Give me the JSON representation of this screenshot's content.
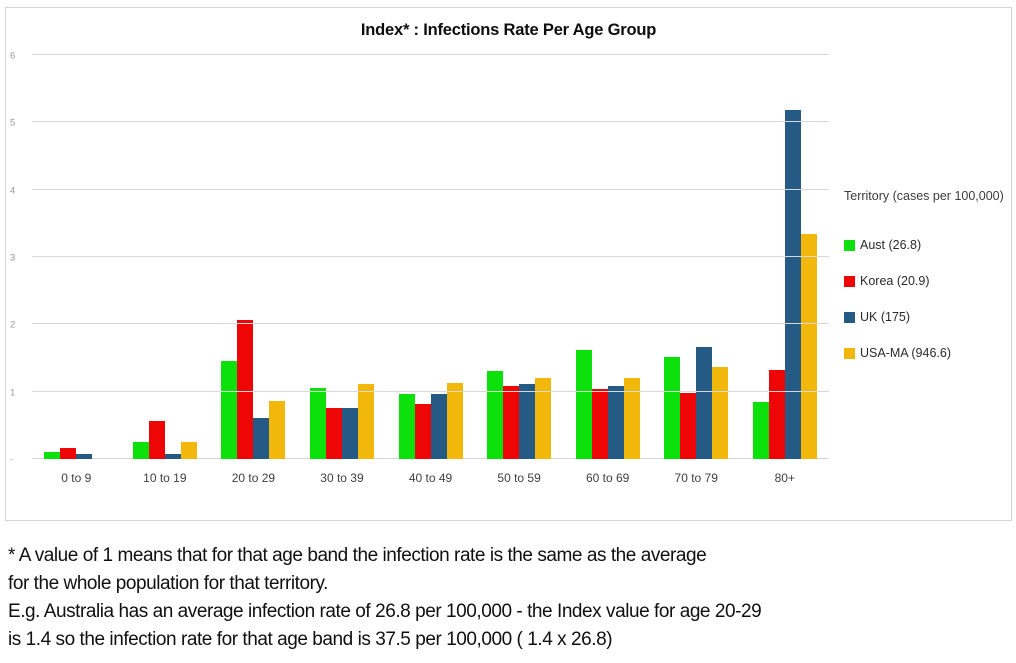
{
  "chart": {
    "title": "Index* : Infections Rate Per Age Group"
  },
  "legend": {
    "title": "Territory (cases per 100,000)",
    "items": [
      {
        "label": "Aust (26.8)",
        "color": "#0ce10c"
      },
      {
        "label": "Korea (20.9)",
        "color": "#ee0606"
      },
      {
        "label": "UK (175)",
        "color": "#255a85"
      },
      {
        "label": "USA-MA (946.6)",
        "color": "#f2b70b"
      }
    ]
  },
  "footnote": {
    "lines": [
      "* A value of 1 means that for that age band the infection rate is the same as the average",
      "for the whole population for that territory.",
      "E.g. Australia has an average infection rate of 26.8 per 100,000 - the Index value for age 20-29",
      "is 1.4 so the infection rate for that age band is 37.5 per 100,000 ( 1.4 x 26.8)"
    ]
  },
  "chart_data": {
    "type": "bar",
    "title": "Index* : Infections Rate Per Age Group",
    "categories": [
      "0 to 9",
      "10 to 19",
      "20 to 29",
      "30 to 39",
      "40 to 49",
      "50 to 59",
      "60 to 69",
      "70 to 79",
      "80+"
    ],
    "series": [
      {
        "name": "Aust (26.8)",
        "color": "#0ce10c",
        "values": [
          0.1,
          0.25,
          1.45,
          1.06,
          0.97,
          1.31,
          1.62,
          1.51,
          0.84
        ]
      },
      {
        "name": "Korea (20.9)",
        "color": "#ee0606",
        "values": [
          0.16,
          0.57,
          2.06,
          0.76,
          0.81,
          1.09,
          1.04,
          0.98,
          1.32
        ]
      },
      {
        "name": "UK (175)",
        "color": "#255a85",
        "values": [
          0.07,
          0.08,
          0.61,
          0.75,
          0.96,
          1.12,
          1.08,
          1.67,
          5.19
        ]
      },
      {
        "name": "USA-MA (946.6)",
        "color": "#f2b70b",
        "values": [
          0.0,
          0.25,
          0.86,
          1.11,
          1.13,
          1.21,
          1.2,
          1.36,
          3.34
        ]
      }
    ],
    "xlabel": "",
    "ylabel": "",
    "ylim": [
      0,
      6
    ],
    "yticks": [
      0,
      1,
      2,
      3,
      4,
      5,
      6
    ],
    "ytick_labels": [
      "-",
      "1",
      "2",
      "3",
      "4",
      "5",
      "6"
    ],
    "grid": true,
    "legend_position": "right",
    "legend_title": "Territory (cases per 100,000)"
  }
}
